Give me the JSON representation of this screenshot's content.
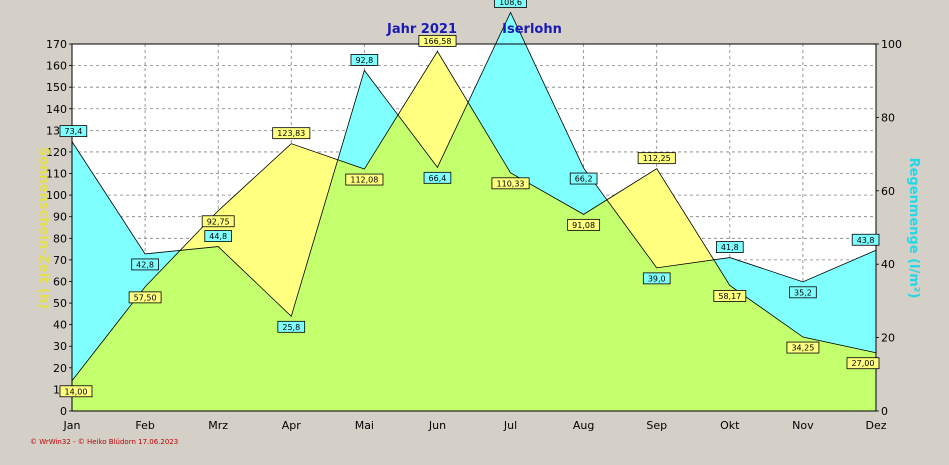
{
  "chart_data": {
    "type": "area",
    "title_left": "Jahr  2021",
    "title_right": "Iserlohn",
    "ylabel_left": "Sonnenschein-Zeit  (h)",
    "ylabel_right": "Regenmenge  (l/m²)",
    "categories": [
      "Jan",
      "Feb",
      "Mrz",
      "Apr",
      "Mai",
      "Jun",
      "Jul",
      "Aug",
      "Sep",
      "Okt",
      "Nov",
      "Dez"
    ],
    "ylim_left": [
      0,
      170
    ],
    "ylim_right": [
      0,
      100
    ],
    "yticks_left": [
      0,
      10,
      20,
      30,
      40,
      50,
      60,
      70,
      80,
      90,
      100,
      110,
      120,
      130,
      140,
      150,
      160,
      170
    ],
    "yticks_right": [
      0,
      20,
      40,
      60,
      80,
      100
    ],
    "grid": true,
    "series": [
      {
        "axis": "left",
        "color": "#ffff80",
        "values": [
          14.0,
          57.5,
          92.75,
          123.83,
          112.08,
          166.58,
          110.33,
          91.08,
          112.25,
          58.17,
          34.25,
          27.0
        ],
        "labels": [
          "14,00",
          "57,50",
          "92,75",
          "123,83",
          "112,08",
          "166,58",
          "110,33",
          "91,08",
          "112,25",
          "58,17",
          "34,25",
          "27,00"
        ]
      },
      {
        "axis": "right",
        "color": "#80ffff",
        "values": [
          73.4,
          42.8,
          44.8,
          25.8,
          92.8,
          66.4,
          108.6,
          66.2,
          39.0,
          41.8,
          35.2,
          43.8
        ],
        "labels": [
          "73,4",
          "42,8",
          "44,8",
          "25,8",
          "92,8",
          "66,4",
          "108,6",
          "66,2",
          "39,0",
          "41,8",
          "35,2",
          "43,8"
        ]
      }
    ]
  },
  "footer": "© WrWin32  -  © Heiko Blüdorn  17.06.2023"
}
